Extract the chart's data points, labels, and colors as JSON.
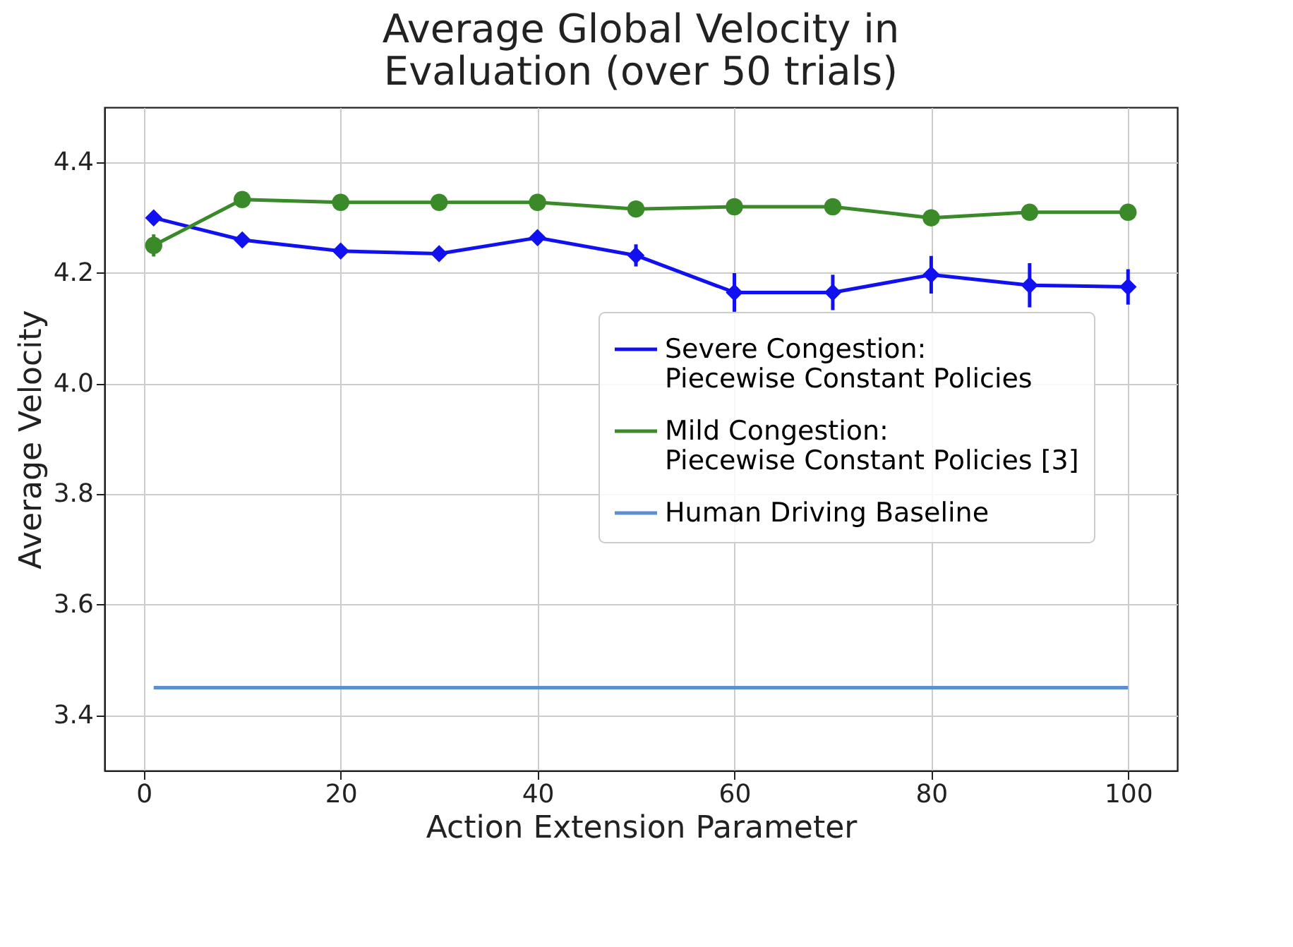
{
  "chart_data": {
    "type": "line",
    "title": "Average Global Velocity in\nEvaluation (over 50 trials)",
    "xlabel": "Action Extension Parameter",
    "ylabel": "Average Velocity",
    "x": [
      1,
      10,
      20,
      30,
      40,
      50,
      60,
      70,
      80,
      90,
      100
    ],
    "series": [
      {
        "name": "Severe Congestion:\nPiecewise Constant Policies",
        "color": "#1010f0",
        "marker": "diamond",
        "values": [
          4.3,
          4.26,
          4.24,
          4.235,
          4.264,
          4.232,
          4.165,
          4.165,
          4.197,
          4.178,
          4.175
        ],
        "errors": [
          0.01,
          0.01,
          0.01,
          0.01,
          0.01,
          0.02,
          0.035,
          0.032,
          0.034,
          0.04,
          0.032
        ]
      },
      {
        "name": "Mild Congestion:\nPiecewise Constant Policies [3]",
        "color": "#3a8a2a",
        "marker": "circle",
        "values": [
          4.25,
          4.333,
          4.328,
          4.328,
          4.328,
          4.316,
          4.32,
          4.32,
          4.3,
          4.31,
          4.31
        ],
        "errors": [
          0.02,
          0.005,
          0.005,
          0.005,
          0.005,
          0.005,
          0.005,
          0.005,
          0.005,
          0.005,
          0.005
        ]
      },
      {
        "name": "Human Driving Baseline",
        "color": "#5b8fcf",
        "marker": "none",
        "x": [
          1,
          100
        ],
        "values": [
          3.45,
          3.45
        ]
      }
    ],
    "xlim": [
      -4,
      105
    ],
    "ylim": [
      3.3,
      4.5
    ],
    "xticks": [
      0,
      20,
      40,
      60,
      80,
      100
    ],
    "yticks": [
      3.4,
      3.6,
      3.8,
      {
        "value": 4,
        "label": "4.0"
      },
      4.2,
      4.4
    ],
    "grid": true,
    "legend": "right"
  }
}
